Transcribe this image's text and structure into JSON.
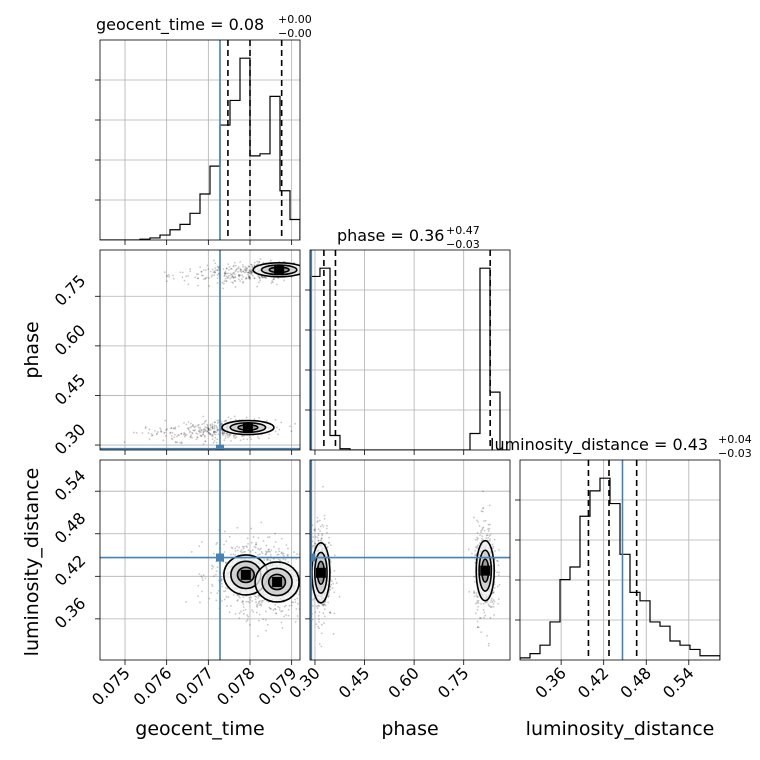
{
  "chart_data": {
    "type": "corner",
    "parameters": [
      "geocent_time",
      "phase",
      "luminosity_distance"
    ],
    "axis_labels": {
      "geocent_time": "geocent_time",
      "phase": "phase",
      "luminosity_distance": "luminosity_distance"
    },
    "titles": [
      {
        "param": "geocent_time",
        "text": "geocent_time = 0.08",
        "sup": "+0.00",
        "sub": "−0.00"
      },
      {
        "param": "phase",
        "text": "phase = 0.36",
        "sup": "+0.47",
        "sub": "−0.03"
      },
      {
        "param": "luminosity_distance",
        "text": "luminosity_distance = 0.43",
        "sup": "+0.04",
        "sub": "−0.03"
      }
    ],
    "ranges": {
      "geocent_time": [
        0.0744,
        0.0792
      ],
      "phase": [
        0.285,
        0.89
      ],
      "luminosity_distance": [
        0.302,
        0.584
      ]
    },
    "ticks": {
      "geocent_time": [
        "0.075",
        "0.076",
        "0.077",
        "0.078",
        "0.079"
      ],
      "phase": [
        "0.30",
        "0.45",
        "0.60",
        "0.75"
      ],
      "luminosity_distance": [
        "0.36",
        "0.42",
        "0.48",
        "0.54"
      ]
    },
    "truth_values": {
      "geocent_time": 0.07728,
      "phase": 0.289,
      "luminosity_distance": 0.4465
    },
    "quantiles": {
      "geocent_time": [
        0.07747,
        0.078,
        0.07876
      ],
      "phase": [
        0.327,
        0.362,
        0.83
      ],
      "luminosity_distance": [
        0.3985,
        0.4275,
        0.4665
      ]
    },
    "histograms": {
      "geocent_time": {
        "edges": [
          0.0744,
          0.07464,
          0.07488,
          0.07512,
          0.07536,
          0.0756,
          0.07584,
          0.07608,
          0.07632,
          0.07656,
          0.0768,
          0.07704,
          0.07728,
          0.07752,
          0.07776,
          0.078,
          0.07824,
          0.07848,
          0.07872,
          0.07896,
          0.0792
        ],
        "counts": [
          0,
          0,
          0,
          0,
          0.2,
          0.5,
          1.2,
          2.5,
          3.8,
          6.5,
          11.2,
          18,
          28,
          34,
          44.3,
          20.5,
          21,
          35,
          12,
          5
        ]
      },
      "phase": {
        "edges": [
          0.285,
          0.3152,
          0.3455,
          0.3757,
          0.406,
          0.4362,
          0.4665,
          0.4967,
          0.527,
          0.5572,
          0.5875,
          0.6177,
          0.648,
          0.6782,
          0.7085,
          0.7387,
          0.769,
          0.7992,
          0.8295,
          0.8597,
          0.89
        ],
        "counts": [
          42,
          44,
          3.5,
          0.3,
          0,
          0,
          0,
          0,
          0,
          0,
          0,
          0,
          0,
          0,
          0,
          0,
          4,
          44,
          14,
          0
        ]
      },
      "luminosity_distance": {
        "edges": [
          0.302,
          0.3161,
          0.3302,
          0.3443,
          0.3584,
          0.3725,
          0.3866,
          0.4007,
          0.4148,
          0.4289,
          0.443,
          0.4571,
          0.4712,
          0.4853,
          0.4994,
          0.5135,
          0.5276,
          0.5417,
          0.5558,
          0.5699,
          0.584
        ],
        "counts": [
          0.5,
          1.5,
          3.5,
          9,
          19,
          22,
          34,
          40,
          43,
          37,
          25,
          16,
          14,
          9,
          8,
          4.5,
          3.5,
          2.5,
          1,
          1
        ]
      }
    },
    "density_modes": [
      {
        "x": "geocent_time",
        "y": "phase",
        "peaks": [
          [
            0.07795,
            0.353
          ],
          [
            0.0787,
            0.83
          ]
        ]
      },
      {
        "x": "geocent_time",
        "y": "luminosity_distance",
        "peaks": [
          [
            0.0779,
            0.422
          ],
          [
            0.07865,
            0.412
          ]
        ]
      },
      {
        "x": "phase",
        "y": "luminosity_distance",
        "peaks": [
          [
            0.318,
            0.425
          ],
          [
            0.815,
            0.428
          ]
        ]
      }
    ],
    "colors": {
      "truth": "#4682b4",
      "lines": "#000000",
      "grid": "#b0b0b0"
    },
    "grid": true
  }
}
